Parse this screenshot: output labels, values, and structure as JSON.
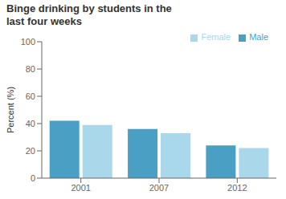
{
  "chart_data": {
    "type": "bar",
    "title": "Binge drinking by students in the\nlast four weeks",
    "ylabel": "Percent (%)",
    "categories": [
      "2001",
      "2007",
      "2012"
    ],
    "series": [
      {
        "name": "Male",
        "color": "#4a9fc4",
        "values": [
          42,
          36,
          24
        ]
      },
      {
        "name": "Female",
        "color": "#a8d8ea",
        "values": [
          39,
          33,
          22
        ]
      }
    ],
    "ylim": [
      0,
      100
    ],
    "yticks": [
      0,
      20,
      40,
      60,
      80,
      100
    ],
    "grid": false,
    "legend": "upper right"
  }
}
